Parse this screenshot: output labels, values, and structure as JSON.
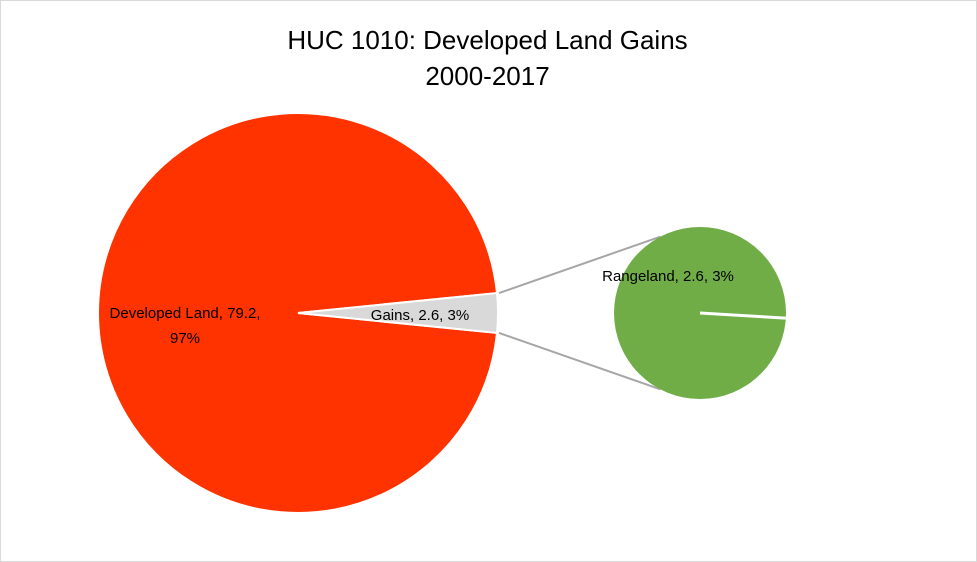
{
  "chart_data": {
    "type": "pie",
    "subtype": "pie-of-pie",
    "title": [
      "HUC 1010: Developed Land Gains",
      "2000-2017"
    ],
    "main_pie": [
      {
        "label": "Developed Land",
        "value": 79.2,
        "percent": "97%",
        "color": "#ff3300"
      },
      {
        "label": "Gains",
        "value": 2.6,
        "percent": "3%",
        "color": "#d9d9d9"
      }
    ],
    "secondary_pie": [
      {
        "label": "Rangeland",
        "value": 2.6,
        "percent": "3%",
        "color": "#70ad47"
      }
    ],
    "data_labels": {
      "developed_line1": "Developed Land, 79.2,",
      "developed_line2": "97%",
      "gains": "Gains, 2.6, 3%",
      "rangeland": "Rangeland, 2.6, 3%"
    },
    "connector_color": "#a6a6a6",
    "legend": "none"
  }
}
